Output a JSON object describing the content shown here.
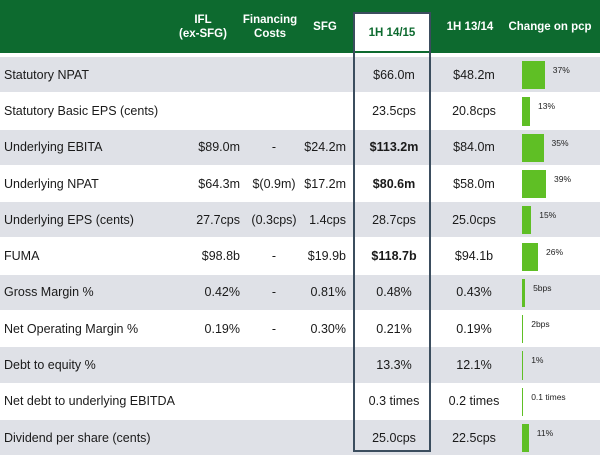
{
  "header": {
    "col_ifl": "IFL\n(ex-SFG)",
    "col_financing": "Financing\nCosts",
    "col_sfg": "SFG",
    "col_1h1415": "1H 14/15",
    "col_1h1314": "1H 13/14",
    "col_change": "Change on pcp"
  },
  "rows": [
    {
      "label": "Statutory NPAT",
      "ifl": "",
      "fin": "",
      "sfg": "",
      "h1": "$66.0m",
      "h13": "$48.2m",
      "change": "37%",
      "change_value": 37
    },
    {
      "label": "Statutory Basic EPS (cents)",
      "ifl": "",
      "fin": "",
      "sfg": "",
      "h1": "23.5cps",
      "h13": "20.8cps",
      "change": "13%",
      "change_value": 13
    },
    {
      "label": "Underlying EBITA",
      "ifl": "$89.0m",
      "fin": "-",
      "sfg": "$24.2m",
      "h1": "$113.2m",
      "h13": "$84.0m",
      "change": "35%",
      "change_value": 35
    },
    {
      "label": "Underlying NPAT",
      "ifl": "$64.3m",
      "fin": "$(0.9m)",
      "sfg": "$17.2m",
      "h1": "$80.6m",
      "h13": "$58.0m",
      "change": "39%",
      "change_value": 39
    },
    {
      "label": "Underlying EPS (cents)",
      "ifl": "27.7cps",
      "fin": "(0.3cps)",
      "sfg": "1.4cps",
      "h1": "28.7cps",
      "h13": "25.0cps",
      "change": "15%",
      "change_value": 15
    },
    {
      "label": "FUMA",
      "ifl": "$98.8b",
      "fin": "-",
      "sfg": "$19.9b",
      "h1": "$118.7b",
      "h13": "$94.1b",
      "change": "26%",
      "change_value": 26
    },
    {
      "label": "Gross Margin %",
      "ifl": "0.42%",
      "fin": "-",
      "sfg": "0.81%",
      "h1": "0.48%",
      "h13": "0.43%",
      "change": "5bps",
      "change_value": 5
    },
    {
      "label": "Net Operating Margin %",
      "ifl": "0.19%",
      "fin": "-",
      "sfg": "0.30%",
      "h1": "0.21%",
      "h13": "0.19%",
      "change": "2bps",
      "change_value": 2
    },
    {
      "label": "Debt to equity %",
      "ifl": "",
      "fin": "",
      "sfg": "",
      "h1": "13.3%",
      "h13": "12.1%",
      "change": "1%",
      "change_value": 1
    },
    {
      "label": "Net debt to underlying EBITDA",
      "ifl": "",
      "fin": "",
      "sfg": "",
      "h1": "0.3 times",
      "h13": "0.2 times",
      "change": "0.1 times",
      "change_value": 0.1
    },
    {
      "label": "Dividend per share (cents)",
      "ifl": "",
      "fin": "",
      "sfg": "",
      "h1": "25.0cps",
      "h13": "22.5cps",
      "change": "11%",
      "change_value": 11
    }
  ],
  "bold_rows_1h1415": [
    2,
    3,
    5
  ],
  "colors": {
    "header_green": "#0d6a2f",
    "bar_green": "#5fbf25",
    "row_shade": "#dfe1e7",
    "highlight_border": "#3b4d5e"
  }
}
